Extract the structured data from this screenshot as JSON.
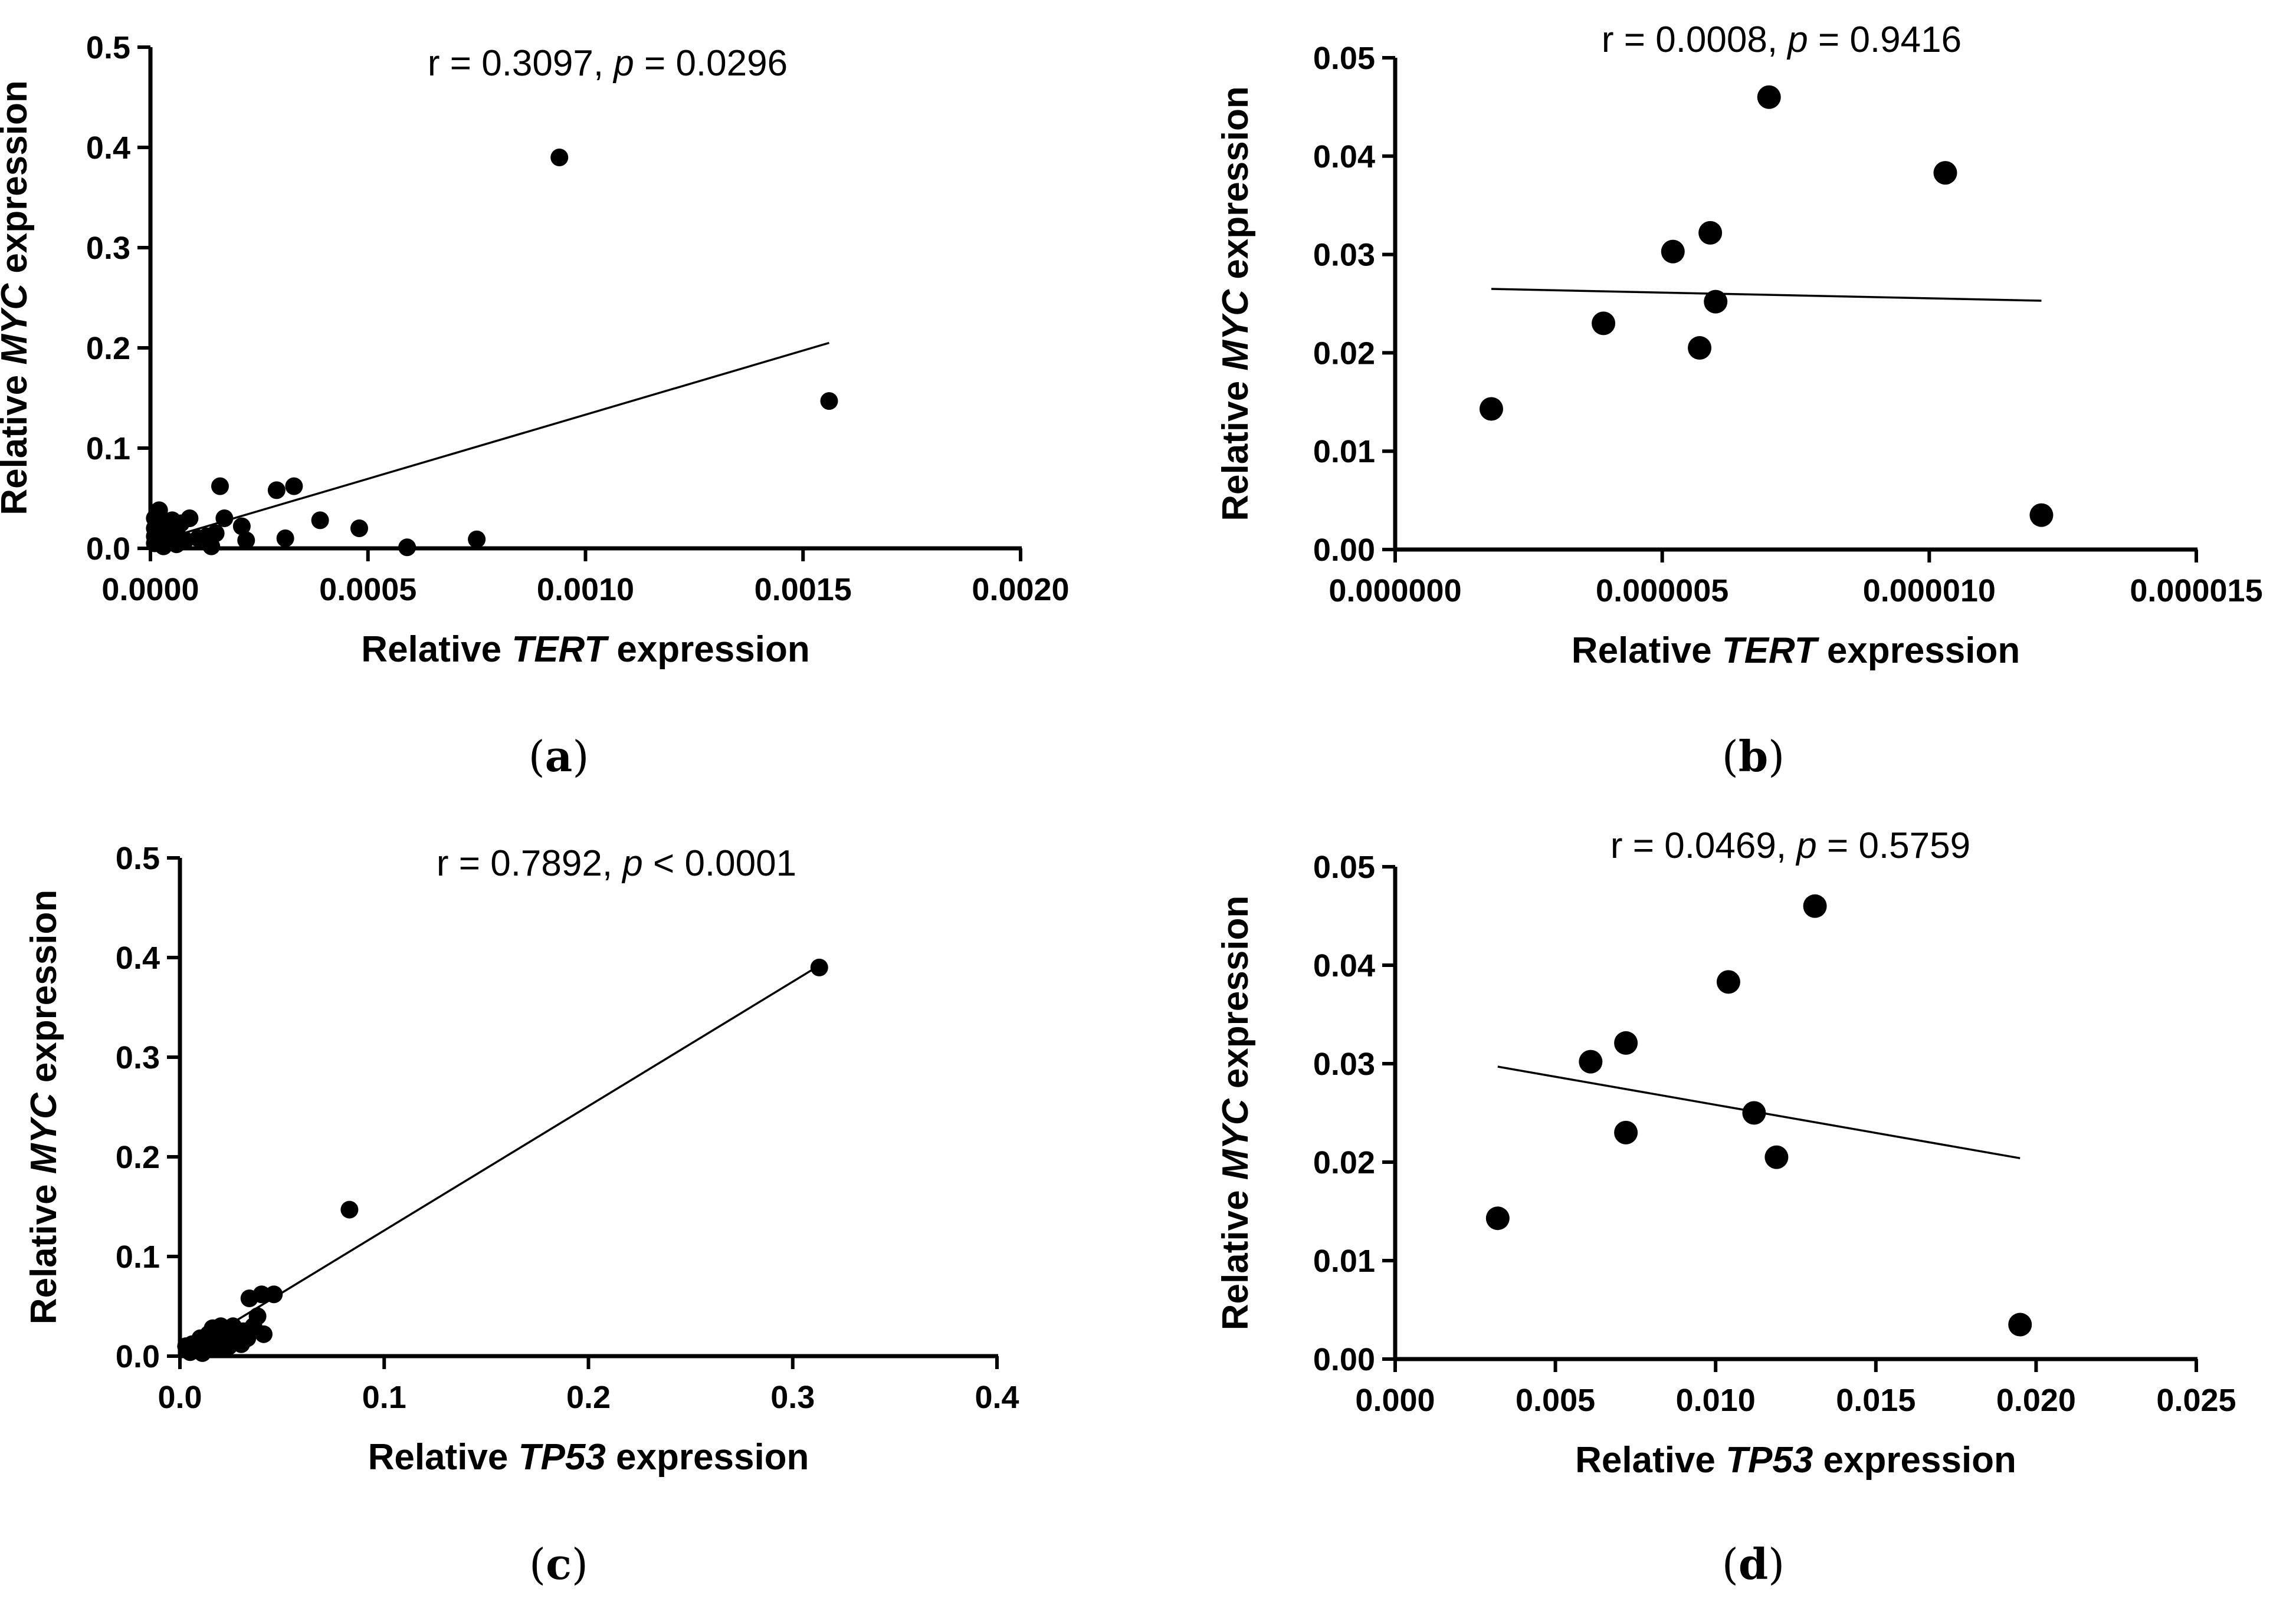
{
  "chart_data": [
    {
      "type": "scatter",
      "panel": "a",
      "annotation": {
        "r_label": "r = 0.3097, ",
        "p_symbol": "p",
        "p_value": " = 0.0296"
      },
      "xlabel": {
        "pre": "Relative ",
        "gene": "TERT",
        "post": " expression"
      },
      "ylabel": {
        "pre": "Relative ",
        "gene": "MYC",
        "post": " expression"
      },
      "xlim": [
        0,
        0.002
      ],
      "ylim": [
        0,
        0.5
      ],
      "xticks": [
        0,
        0.0005,
        0.001,
        0.0015,
        0.002
      ],
      "xtick_labels": [
        "0.0000",
        "0.0005",
        "0.0010",
        "0.0015",
        "0.0020"
      ],
      "yticks": [
        0,
        0.1,
        0.2,
        0.3,
        0.4,
        0.5
      ],
      "ytick_labels": [
        "0.0",
        "0.1",
        "0.2",
        "0.3",
        "0.4",
        "0.5"
      ],
      "points": [
        [
          2e-05,
          0.038
        ],
        [
          1e-05,
          0.03
        ],
        [
          3e-05,
          0.022
        ],
        [
          4e-05,
          0.012
        ],
        [
          1e-05,
          0.005
        ],
        [
          5e-05,
          0.028
        ],
        [
          6e-05,
          0.018
        ],
        [
          7e-05,
          0.025
        ],
        [
          8e-05,
          0.008
        ],
        [
          9e-05,
          0.03
        ],
        [
          2e-05,
          0.015
        ],
        [
          3e-05,
          0.002
        ],
        [
          4e-05,
          0.02
        ],
        [
          6e-05,
          0.004
        ],
        [
          0.00011,
          0.01
        ],
        [
          0.00013,
          0.012
        ],
        [
          0.00014,
          0.002
        ],
        [
          0.00015,
          0.015
        ],
        [
          0.00016,
          0.062
        ],
        [
          0.00017,
          0.03
        ],
        [
          0.00021,
          0.022
        ],
        [
          0.00022,
          0.008
        ],
        [
          0.00029,
          0.058
        ],
        [
          0.00031,
          0.01
        ],
        [
          0.00033,
          0.062
        ],
        [
          0.00039,
          0.028
        ],
        [
          0.00048,
          0.02
        ],
        [
          0.00059,
          0.001
        ],
        [
          0.00075,
          0.009
        ],
        [
          0.00094,
          0.39
        ],
        [
          0.00156,
          0.147
        ],
        [
          1e-05,
          0.012
        ],
        [
          2e-05,
          0.008
        ],
        [
          1e-05,
          0.02
        ]
      ],
      "fit_line": [
        [
          2e-05,
          0.008
        ],
        [
          0.00156,
          0.205
        ]
      ]
    },
    {
      "type": "scatter",
      "panel": "b",
      "annotation": {
        "r_label": "r = 0.0008, ",
        "p_symbol": "p",
        "p_value": " = 0.9416"
      },
      "xlabel": {
        "pre": "Relative ",
        "gene": "TERT",
        "post": " expression"
      },
      "ylabel": {
        "pre": "Relative ",
        "gene": "MYC",
        "post": " expression"
      },
      "xlim": [
        0,
        1.5e-05
      ],
      "ylim": [
        0,
        0.05
      ],
      "xticks": [
        0,
        5e-06,
        1e-05,
        1.5e-05
      ],
      "xtick_labels": [
        "0.000000",
        "0.000005",
        "0.000010",
        "0.000015"
      ],
      "yticks": [
        0,
        0.01,
        0.02,
        0.03,
        0.04,
        0.05
      ],
      "ytick_labels": [
        "0.00",
        "0.01",
        "0.02",
        "0.03",
        "0.04",
        "0.05"
      ],
      "points": [
        [
          1.8e-06,
          0.0143
        ],
        [
          3.9e-06,
          0.023
        ],
        [
          5.2e-06,
          0.0303
        ],
        [
          5.7e-06,
          0.0205
        ],
        [
          5.9e-06,
          0.0322
        ],
        [
          6e-06,
          0.0252
        ],
        [
          7e-06,
          0.046
        ],
        [
          1.03e-05,
          0.0383
        ],
        [
          1.21e-05,
          0.0035
        ]
      ],
      "fit_line": [
        [
          1.8e-06,
          0.0265
        ],
        [
          1.21e-05,
          0.0253
        ]
      ]
    },
    {
      "type": "scatter",
      "panel": "c",
      "annotation": {
        "r_label": "r = 0.7892, ",
        "p_symbol": "p",
        "p_value": " < 0.0001"
      },
      "xlabel": {
        "pre": "Relative ",
        "gene": "TP53",
        "post": " expression"
      },
      "ylabel": {
        "pre": "Relative ",
        "gene": "MYC",
        "post": " expression"
      },
      "xlim": [
        0,
        0.4
      ],
      "ylim": [
        0,
        0.5
      ],
      "xticks": [
        0,
        0.1,
        0.2,
        0.3,
        0.4
      ],
      "xtick_labels": [
        "0.0",
        "0.1",
        "0.2",
        "0.3",
        "0.4"
      ],
      "yticks": [
        0,
        0.1,
        0.2,
        0.3,
        0.4,
        0.5
      ],
      "ytick_labels": [
        "0.0",
        "0.1",
        "0.2",
        "0.3",
        "0.4",
        "0.5"
      ],
      "points": [
        [
          0.003,
          0.01
        ],
        [
          0.005,
          0.004
        ],
        [
          0.006,
          0.012
        ],
        [
          0.008,
          0.008
        ],
        [
          0.01,
          0.018
        ],
        [
          0.011,
          0.003
        ],
        [
          0.012,
          0.015
        ],
        [
          0.014,
          0.022
        ],
        [
          0.015,
          0.01
        ],
        [
          0.016,
          0.028
        ],
        [
          0.018,
          0.02
        ],
        [
          0.019,
          0.008
        ],
        [
          0.02,
          0.03
        ],
        [
          0.022,
          0.015
        ],
        [
          0.023,
          0.025
        ],
        [
          0.024,
          0.01
        ],
        [
          0.025,
          0.018
        ],
        [
          0.026,
          0.03
        ],
        [
          0.028,
          0.022
        ],
        [
          0.03,
          0.012
        ],
        [
          0.031,
          0.025
        ],
        [
          0.033,
          0.018
        ],
        [
          0.034,
          0.058
        ],
        [
          0.036,
          0.03
        ],
        [
          0.038,
          0.04
        ],
        [
          0.04,
          0.062
        ],
        [
          0.041,
          0.022
        ],
        [
          0.046,
          0.062
        ],
        [
          0.083,
          0.147
        ],
        [
          0.313,
          0.39
        ]
      ],
      "fit_line": [
        [
          0.003,
          0.005
        ],
        [
          0.313,
          0.392
        ]
      ]
    },
    {
      "type": "scatter",
      "panel": "d",
      "annotation": {
        "r_label": "r = 0.0469, ",
        "p_symbol": "p",
        "p_value": " = 0.5759"
      },
      "xlabel": {
        "pre": "Relative ",
        "gene": "TP53",
        "post": " expression"
      },
      "ylabel": {
        "pre": "Relative ",
        "gene": "MYC",
        "post": " expression"
      },
      "xlim": [
        0,
        0.025
      ],
      "ylim": [
        0,
        0.05
      ],
      "xticks": [
        0,
        0.005,
        0.01,
        0.015,
        0.02,
        0.025
      ],
      "xtick_labels": [
        "0.000",
        "0.005",
        "0.010",
        "0.015",
        "0.020",
        "0.025"
      ],
      "yticks": [
        0,
        0.01,
        0.02,
        0.03,
        0.04,
        0.05
      ],
      "ytick_labels": [
        "0.00",
        "0.01",
        "0.02",
        "0.03",
        "0.04",
        "0.05"
      ],
      "points": [
        [
          0.0032,
          0.0143
        ],
        [
          0.0061,
          0.0302
        ],
        [
          0.0072,
          0.0321
        ],
        [
          0.0072,
          0.023
        ],
        [
          0.0104,
          0.0383
        ],
        [
          0.0112,
          0.025
        ],
        [
          0.0119,
          0.0205
        ],
        [
          0.0131,
          0.046
        ],
        [
          0.0195,
          0.0035
        ]
      ],
      "fit_line": [
        [
          0.0032,
          0.0297
        ],
        [
          0.0195,
          0.0204
        ]
      ]
    }
  ],
  "panel_labels": [
    "a",
    "b",
    "c",
    "d"
  ]
}
